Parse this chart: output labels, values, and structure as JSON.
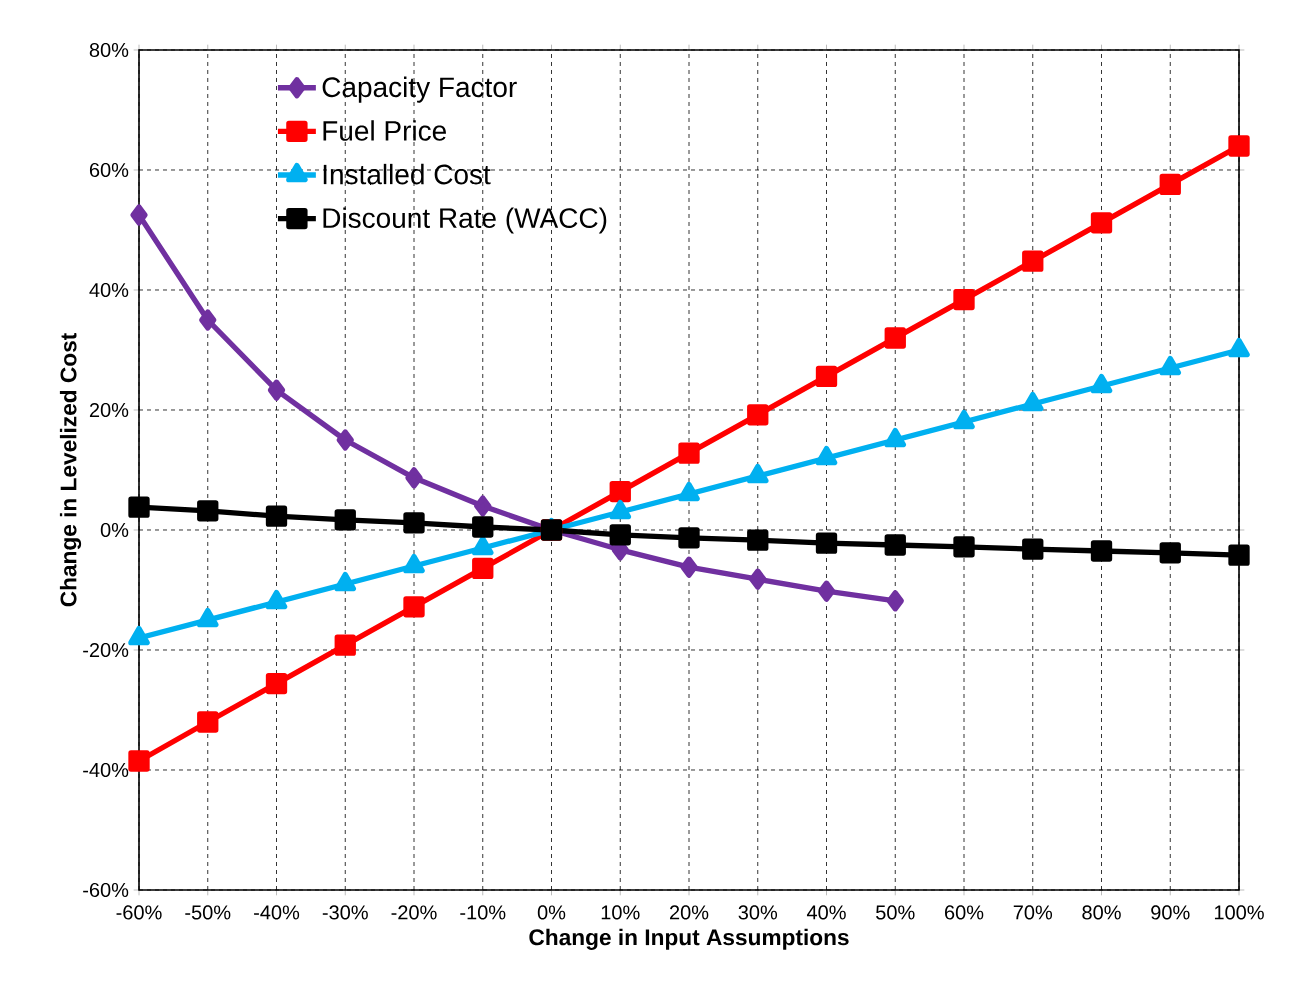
{
  "chart_data": {
    "type": "line",
    "xlabel": "Change in Input Assumptions",
    "ylabel": "Change in Levelized Cost",
    "xlim": [
      -60,
      100
    ],
    "ylim": [
      -60,
      80
    ],
    "xticks": [
      {
        "value": -60,
        "label": "-60%"
      },
      {
        "value": -50,
        "label": "-50%"
      },
      {
        "value": -40,
        "label": "-40%"
      },
      {
        "value": -30,
        "label": "-30%"
      },
      {
        "value": -20,
        "label": "-20%"
      },
      {
        "value": -10,
        "label": "-10%"
      },
      {
        "value": 0,
        "label": "0%"
      },
      {
        "value": 10,
        "label": "10%"
      },
      {
        "value": 20,
        "label": "20%"
      },
      {
        "value": 30,
        "label": "30%"
      },
      {
        "value": 40,
        "label": "40%"
      },
      {
        "value": 50,
        "label": "50%"
      },
      {
        "value": 60,
        "label": "60%"
      },
      {
        "value": 70,
        "label": "70%"
      },
      {
        "value": 80,
        "label": "80%"
      },
      {
        "value": 90,
        "label": "90%"
      },
      {
        "value": 100,
        "label": "100%"
      }
    ],
    "yticks": [
      {
        "value": -60,
        "label": "-60%"
      },
      {
        "value": -40,
        "label": "-40%"
      },
      {
        "value": -20,
        "label": "-20%"
      },
      {
        "value": 0,
        "label": "0%"
      },
      {
        "value": 20,
        "label": "20%"
      },
      {
        "value": 40,
        "label": "40%"
      },
      {
        "value": 60,
        "label": "60%"
      },
      {
        "value": 80,
        "label": "80%"
      }
    ],
    "grid": true,
    "legend": "top left",
    "line_style": "solid",
    "series": [
      {
        "name": "Capacity Factor",
        "color": "#7030a0",
        "marker": "diamond",
        "x": [
          -60,
          -50,
          -40,
          -30,
          -20,
          -10,
          0,
          10,
          20,
          30,
          40,
          50
        ],
        "values": [
          52.5,
          35,
          23.3,
          15,
          8.7,
          4,
          0,
          -3.3,
          -6.2,
          -8.2,
          -10.2,
          -11.8
        ]
      },
      {
        "name": "Fuel Price",
        "color": "#ff0000",
        "marker": "square",
        "x": [
          -60,
          -50,
          -40,
          -30,
          -20,
          -10,
          0,
          10,
          20,
          30,
          40,
          50,
          60,
          70,
          80,
          90,
          100
        ],
        "values": [
          -38.5,
          -32,
          -25.6,
          -19.2,
          -12.8,
          -6.4,
          0,
          6.4,
          12.8,
          19.2,
          25.6,
          32,
          38.4,
          44.8,
          51.2,
          57.6,
          64
        ]
      },
      {
        "name": "Installed Cost",
        "color": "#00b0f0",
        "marker": "triangle",
        "x": [
          -60,
          -50,
          -40,
          -30,
          -20,
          -10,
          0,
          10,
          20,
          30,
          40,
          50,
          60,
          70,
          80,
          90,
          100
        ],
        "values": [
          -18,
          -15,
          -12,
          -9,
          -6,
          -3,
          0,
          3,
          6,
          9,
          12,
          15,
          18,
          21,
          24,
          27,
          30
        ]
      },
      {
        "name": "Discount Rate (WACC)",
        "color": "#000000",
        "marker": "square",
        "x": [
          -60,
          -50,
          -40,
          -30,
          -20,
          -10,
          0,
          10,
          20,
          30,
          40,
          50,
          60,
          70,
          80,
          90,
          100
        ],
        "values": [
          3.8,
          3.2,
          2.3,
          1.7,
          1.2,
          0.5,
          0,
          -0.8,
          -1.3,
          -1.7,
          -2.2,
          -2.5,
          -2.8,
          -3.2,
          -3.5,
          -3.8,
          -4.2
        ]
      }
    ]
  }
}
